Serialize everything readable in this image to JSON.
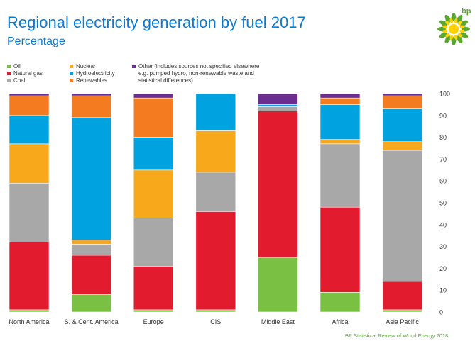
{
  "header": {
    "title": "Regional electricity generation by fuel 2017",
    "subtitle": "Percentage",
    "logo_text": "bp"
  },
  "colors": {
    "title": "#0a7bd1",
    "brand_green": "#5aa832",
    "brand_yellow": "#ffd200"
  },
  "legend": [
    {
      "key": "oil",
      "label": "Oil",
      "color": "#7ac143"
    },
    {
      "key": "gas",
      "label": "Natural gas",
      "color": "#e31b2e"
    },
    {
      "key": "coal",
      "label": "Coal",
      "color": "#a8a8a8"
    },
    {
      "key": "nuclear",
      "label": "Nuclear",
      "color": "#f7a81b"
    },
    {
      "key": "hydro",
      "label": "Hydroelectricity",
      "color": "#00a2e0"
    },
    {
      "key": "renew",
      "label": "Renewables",
      "color": "#f47b20"
    },
    {
      "key": "other",
      "label": "Other (includes sources not specified elsewhere",
      "label2": "e.g. pumped hydro, non-renewable waste and",
      "label3": "statistical differences)",
      "color": "#6b2d90"
    }
  ],
  "chart_data": {
    "type": "bar",
    "stacked": true,
    "categories": [
      "North America",
      "S. & Cent. America",
      "Europe",
      "CIS",
      "Middle East",
      "Africa",
      "Asia Pacific"
    ],
    "series": [
      {
        "name": "Oil",
        "key": "oil",
        "values": [
          1,
          8,
          1,
          1,
          25,
          9,
          1
        ]
      },
      {
        "name": "Natural gas",
        "key": "gas",
        "values": [
          31,
          18,
          20,
          45,
          67,
          39,
          13
        ]
      },
      {
        "name": "Coal",
        "key": "coal",
        "values": [
          27,
          5,
          22,
          18,
          2,
          29,
          60
        ]
      },
      {
        "name": "Nuclear",
        "key": "nuclear",
        "values": [
          18,
          2,
          22,
          19,
          0,
          2,
          4
        ]
      },
      {
        "name": "Hydroelectricity",
        "key": "hydro",
        "values": [
          13,
          56,
          15,
          17,
          1,
          16,
          15
        ]
      },
      {
        "name": "Renewables",
        "key": "renew",
        "values": [
          9,
          10,
          18,
          0,
          0,
          3,
          6
        ]
      },
      {
        "name": "Other",
        "key": "other",
        "values": [
          1,
          1,
          2,
          0,
          5,
          2,
          1
        ]
      }
    ],
    "y_ticks": [
      0,
      10,
      20,
      30,
      40,
      50,
      60,
      70,
      80,
      90,
      100
    ],
    "ylim": [
      0,
      100
    ],
    "grid": false,
    "y_axis_side": "right"
  },
  "source": "BP Statistical Review of World Energy 2018"
}
